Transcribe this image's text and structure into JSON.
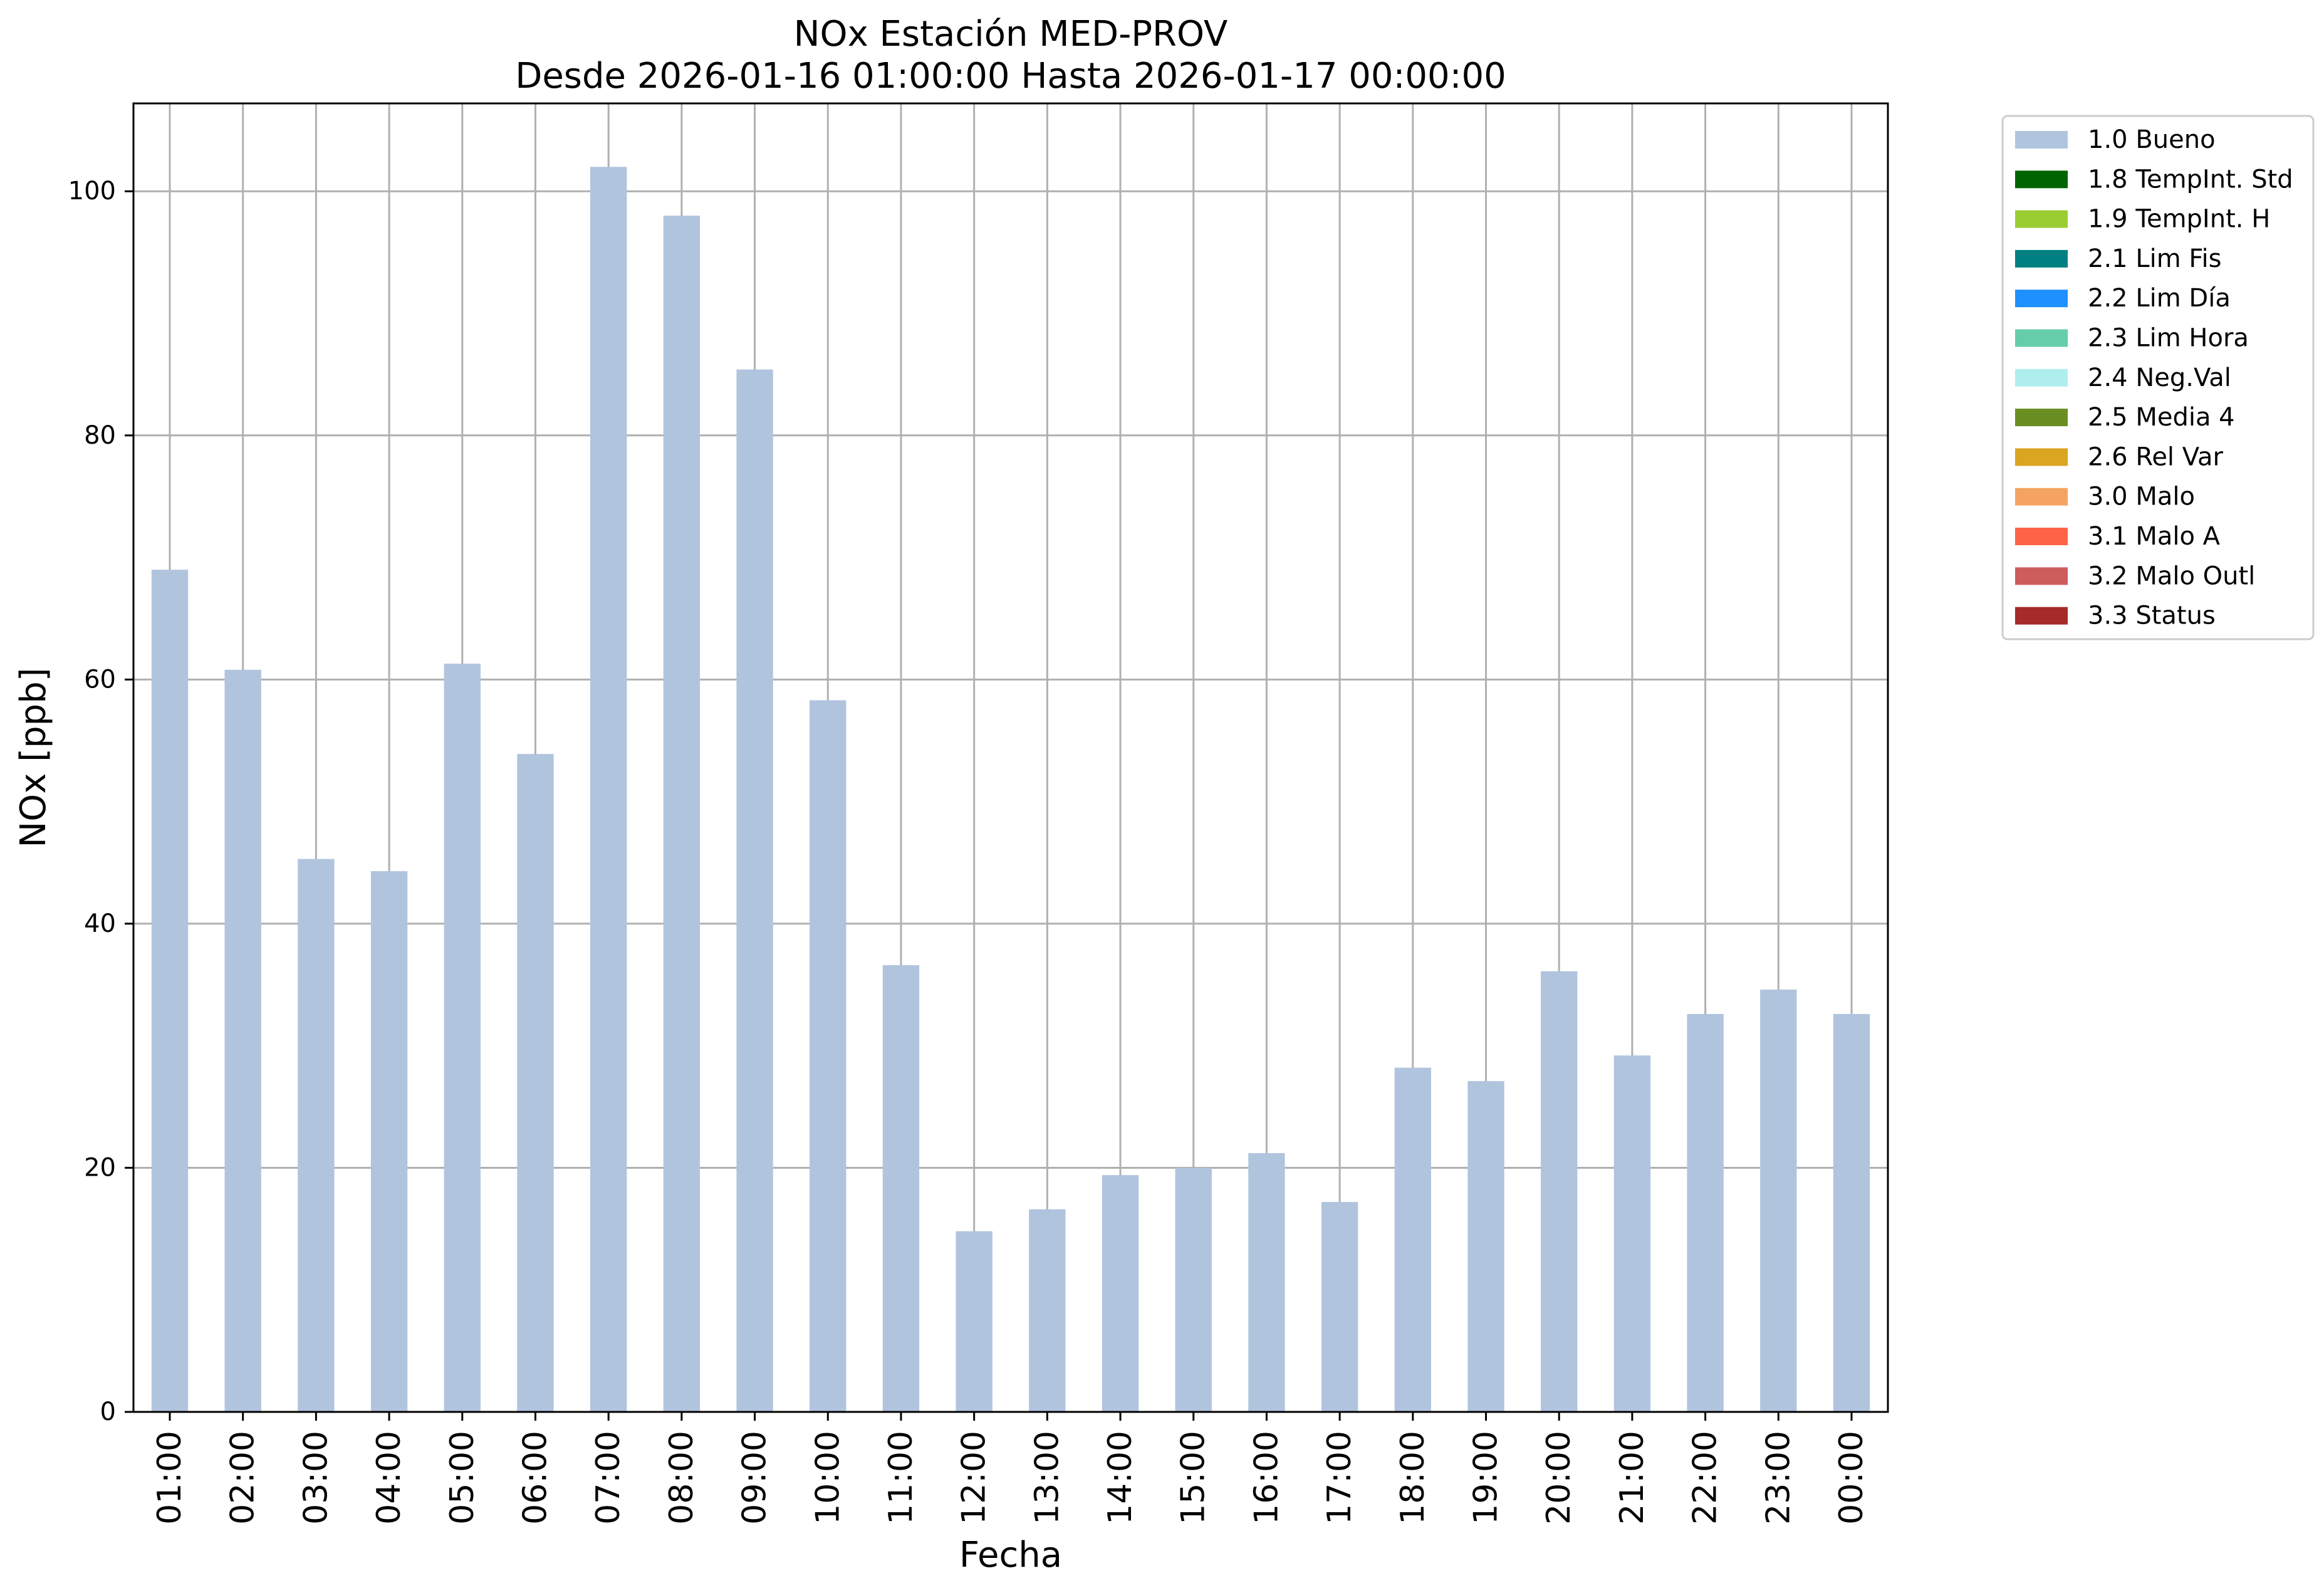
{
  "chart_data": {
    "type": "bar",
    "title": "NOx Estación MED-PROV",
    "subtitle": "Desde 2026-01-16 01:00:00 Hasta 2026-01-17 00:00:00",
    "xlabel": "Fecha",
    "ylabel": "NOx [ppb]",
    "categories": [
      "01:00",
      "02:00",
      "03:00",
      "04:00",
      "05:00",
      "06:00",
      "07:00",
      "08:00",
      "09:00",
      "10:00",
      "11:00",
      "12:00",
      "13:00",
      "14:00",
      "15:00",
      "16:00",
      "17:00",
      "18:00",
      "19:00",
      "20:00",
      "21:00",
      "22:00",
      "23:00",
      "00:00"
    ],
    "series": [
      {
        "name": "1.0 Bueno",
        "color": "#b0c4de",
        "values": [
          69.0,
          60.8,
          45.3,
          44.3,
          61.3,
          53.9,
          102.0,
          98.0,
          85.4,
          58.3,
          36.6,
          14.8,
          16.6,
          19.4,
          20.0,
          21.2,
          17.2,
          28.2,
          27.1,
          36.1,
          29.2,
          32.6,
          34.6,
          32.6
        ]
      }
    ],
    "ylim": [
      0,
      107.2
    ],
    "yticks": [
      0,
      20,
      40,
      60,
      80,
      100
    ],
    "grid": true,
    "legend_position": "outside-top-right",
    "legend": [
      {
        "label": "1.0 Bueno",
        "color": "#b0c4de"
      },
      {
        "label": "1.8 TempInt. Std",
        "color": "#006400"
      },
      {
        "label": "1.9 TempInt. H",
        "color": "#9acd32"
      },
      {
        "label": "2.1 Lim Fis",
        "color": "#008080"
      },
      {
        "label": "2.2 Lim Día",
        "color": "#1e90ff"
      },
      {
        "label": "2.3 Lim Hora",
        "color": "#66cdaa"
      },
      {
        "label": "2.4 Neg.Val",
        "color": "#afeeee"
      },
      {
        "label": "2.5 Media 4",
        "color": "#6b8e23"
      },
      {
        "label": "2.6 Rel Var",
        "color": "#daa520"
      },
      {
        "label": "3.0 Malo",
        "color": "#f4a460"
      },
      {
        "label": "3.1 Malo A",
        "color": "#ff6347"
      },
      {
        "label": "3.2 Malo Outl",
        "color": "#cd5c5c"
      },
      {
        "label": "3.3 Status",
        "color": "#a52a2a"
      }
    ]
  }
}
